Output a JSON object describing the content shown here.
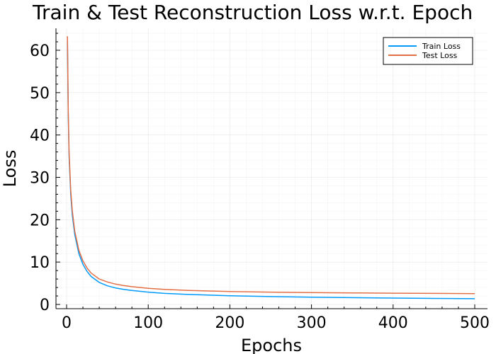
{
  "chart_data": {
    "type": "line",
    "title": "Train & Test Reconstruction Loss w.r.t. Epoch",
    "xlabel": "Epochs",
    "ylabel": "Loss",
    "xlim": [
      0,
      500
    ],
    "ylim": [
      0,
      65
    ],
    "xticks": [
      0,
      100,
      200,
      300,
      400,
      500
    ],
    "yticks": [
      0,
      10,
      20,
      30,
      40,
      50,
      60
    ],
    "grid": true,
    "legend_position": "top-right",
    "series": [
      {
        "name": "Train Loss",
        "color": "#009af9",
        "x": [
          1,
          2,
          3,
          5,
          7,
          10,
          15,
          20,
          25,
          30,
          40,
          50,
          60,
          70,
          80,
          100,
          120,
          150,
          200,
          250,
          300,
          350,
          400,
          450,
          500
        ],
        "y": [
          62.0,
          45.0,
          35.0,
          26.0,
          21.0,
          16.5,
          12.0,
          9.5,
          7.8,
          6.6,
          5.2,
          4.4,
          3.9,
          3.55,
          3.3,
          2.9,
          2.6,
          2.35,
          2.05,
          1.85,
          1.7,
          1.6,
          1.5,
          1.42,
          1.35
        ]
      },
      {
        "name": "Test Loss",
        "color": "#e26f46",
        "x": [
          1,
          2,
          3,
          5,
          7,
          10,
          15,
          20,
          25,
          30,
          40,
          50,
          60,
          70,
          80,
          100,
          120,
          150,
          200,
          250,
          300,
          350,
          400,
          450,
          500
        ],
        "y": [
          63.3,
          46.0,
          36.0,
          27.0,
          22.0,
          17.3,
          12.8,
          10.3,
          8.6,
          7.4,
          6.0,
          5.3,
          4.8,
          4.45,
          4.2,
          3.8,
          3.55,
          3.3,
          3.05,
          2.9,
          2.8,
          2.72,
          2.65,
          2.6,
          2.55
        ]
      }
    ]
  }
}
